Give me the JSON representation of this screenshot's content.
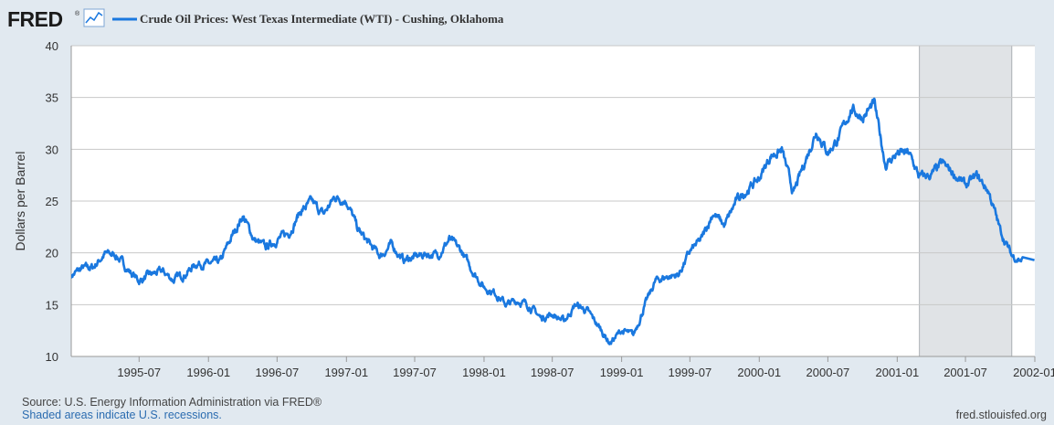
{
  "logo": {
    "text": "FRED",
    "registered": "®"
  },
  "colors": {
    "series": "#1a78df",
    "recession": "#e0e3e6",
    "plot_bg": "#ffffff",
    "grid": "#c8c8c8",
    "page_bg": "#e1e9f0"
  },
  "footer": {
    "source": "Source: U.S. Energy Information Administration via FRED®",
    "shaded": "Shaded areas indicate U.S. recessions.",
    "site": "fred.stlouisfed.org"
  },
  "chart_data": {
    "type": "line",
    "title": "Crude Oil Prices: West Texas Intermediate (WTI) - Cushing, Oklahoma",
    "ylabel": "Dollars per Barrel",
    "xlabel": "",
    "ylim": [
      10,
      40
    ],
    "xlim": [
      "1995-01-02",
      "2002-01-01"
    ],
    "yticks": [
      10,
      15,
      20,
      25,
      30,
      35,
      40
    ],
    "xticks": [
      "1995-07",
      "1996-01",
      "1996-07",
      "1997-01",
      "1997-07",
      "1998-01",
      "1998-07",
      "1999-01",
      "1999-07",
      "2000-01",
      "2000-07",
      "2001-01",
      "2001-07",
      "2002-01"
    ],
    "recessions": [
      {
        "start": "2001-03",
        "end": "2001-11"
      }
    ],
    "grid": true,
    "series": [
      {
        "name": "Crude Oil Prices: West Texas Intermediate (WTI) - Cushing, Oklahoma",
        "x": [
          "1995-01",
          "1995-02",
          "1995-03",
          "1995-04",
          "1995-05",
          "1995-06",
          "1995-07",
          "1995-08",
          "1995-09",
          "1995-10",
          "1995-11",
          "1995-12",
          "1996-01",
          "1996-02",
          "1996-03",
          "1996-04",
          "1996-05",
          "1996-06",
          "1996-07",
          "1996-08",
          "1996-09",
          "1996-10",
          "1996-11",
          "1996-12",
          "1997-01",
          "1997-02",
          "1997-03",
          "1997-04",
          "1997-05",
          "1997-06",
          "1997-07",
          "1997-08",
          "1997-09",
          "1997-10",
          "1997-11",
          "1997-12",
          "1998-01",
          "1998-02",
          "1998-03",
          "1998-04",
          "1998-05",
          "1998-06",
          "1998-07",
          "1998-08",
          "1998-09",
          "1998-10",
          "1998-11",
          "1998-12",
          "1999-01",
          "1999-02",
          "1999-03",
          "1999-04",
          "1999-05",
          "1999-06",
          "1999-07",
          "1999-08",
          "1999-09",
          "1999-10",
          "1999-11",
          "1999-12",
          "2000-01",
          "2000-02",
          "2000-03",
          "2000-04",
          "2000-05",
          "2000-06",
          "2000-07",
          "2000-08",
          "2000-09",
          "2000-10",
          "2000-11",
          "2000-12",
          "2001-01",
          "2001-02",
          "2001-03",
          "2001-04",
          "2001-05",
          "2001-06",
          "2001-07",
          "2001-08",
          "2001-09",
          "2001-10",
          "2001-11",
          "2001-12"
        ],
        "values": [
          17.8,
          18.5,
          18.6,
          19.9,
          19.8,
          18.4,
          17.3,
          17.9,
          18.2,
          17.4,
          18.0,
          19.0,
          18.9,
          19.1,
          21.4,
          23.6,
          21.3,
          20.5,
          21.3,
          21.9,
          24.0,
          24.9,
          23.7,
          25.4,
          25.1,
          22.2,
          20.9,
          19.7,
          20.8,
          19.3,
          19.6,
          19.9,
          19.8,
          21.3,
          20.2,
          18.3,
          16.7,
          16.1,
          15.0,
          15.4,
          14.9,
          13.7,
          14.1,
          13.4,
          15.0,
          14.4,
          12.9,
          11.3,
          12.5,
          12.0,
          14.7,
          17.3,
          17.7,
          17.9,
          20.1,
          21.3,
          23.9,
          22.6,
          25.0,
          26.1,
          27.2,
          29.4,
          29.9,
          25.7,
          28.8,
          31.8,
          29.7,
          31.2,
          33.9,
          33.1,
          34.4,
          28.5,
          29.6,
          29.6,
          27.3,
          27.5,
          28.6,
          27.6,
          26.5,
          27.4,
          25.9,
          22.2,
          19.7,
          19.3
        ]
      }
    ]
  }
}
